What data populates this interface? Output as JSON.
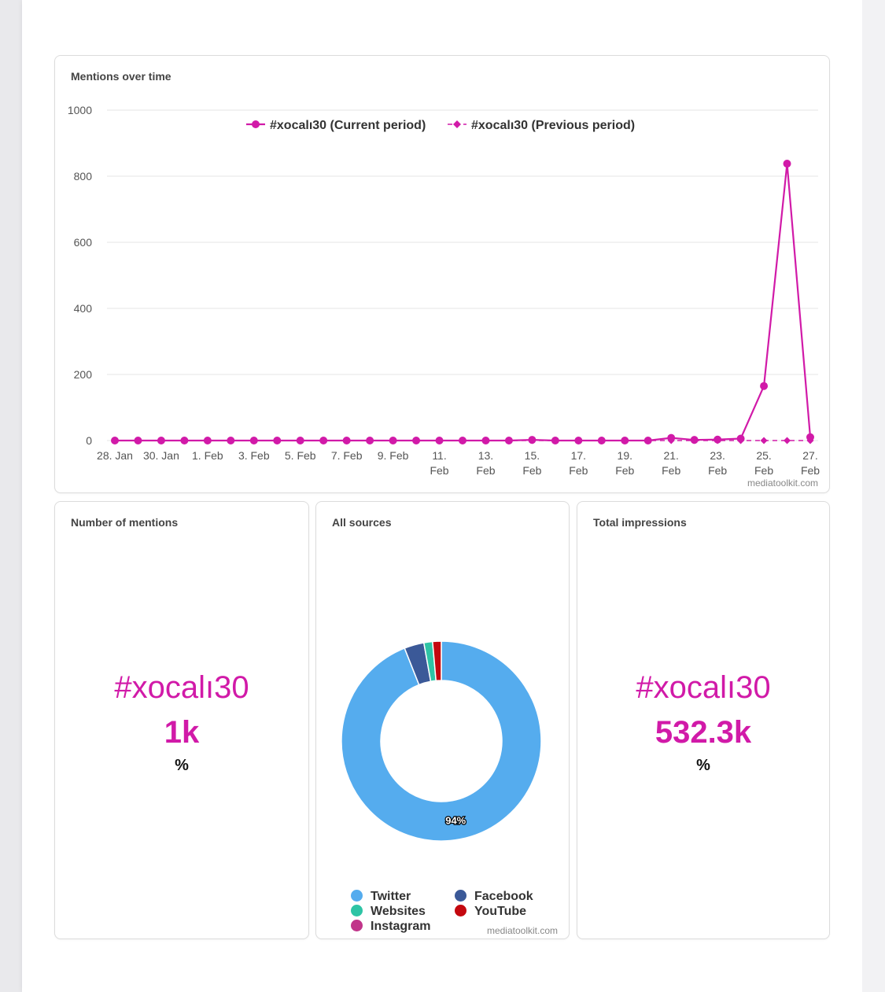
{
  "line_card": {
    "title": "Mentions over time",
    "credit": "mediatoolkit.com"
  },
  "mentions_card": {
    "title": "Number of mentions",
    "tag": "#xocalı30",
    "value": "1k",
    "pct": "%"
  },
  "sources_card": {
    "title": "All sources",
    "credit": "mediatoolkit.com",
    "center_label": "94%"
  },
  "impressions_card": {
    "title": "Total impressions",
    "tag": "#xocalı30",
    "value": "532.3k",
    "pct": "%"
  },
  "colors": {
    "accent": "#d11aa8",
    "twitter": "#55acee",
    "facebook": "#3b5998",
    "websites": "#2ec4a5",
    "youtube": "#c4080f",
    "instagram": "#c1358a"
  },
  "chart_data": [
    {
      "type": "line",
      "title": "Mentions over time",
      "ylim": [
        0,
        1000
      ],
      "yticks": [
        "0",
        "200",
        "400",
        "600",
        "800",
        "1000"
      ],
      "xtick_labels": [
        [
          "28. Jan"
        ],
        [
          "30. Jan"
        ],
        [
          "1. Feb"
        ],
        [
          "3. Feb"
        ],
        [
          "5. Feb"
        ],
        [
          "7. Feb"
        ],
        [
          "9. Feb"
        ],
        [
          "11.",
          "Feb"
        ],
        [
          "13.",
          "Feb"
        ],
        [
          "15.",
          "Feb"
        ],
        [
          "17.",
          "Feb"
        ],
        [
          "19.",
          "Feb"
        ],
        [
          "21.",
          "Feb"
        ],
        [
          "23.",
          "Feb"
        ],
        [
          "25.",
          "Feb"
        ],
        [
          "27.",
          "Feb"
        ]
      ],
      "x": [
        "28. Jan",
        "29. Jan",
        "30. Jan",
        "31. Jan",
        "1. Feb",
        "2. Feb",
        "3. Feb",
        "4. Feb",
        "5. Feb",
        "6. Feb",
        "7. Feb",
        "8. Feb",
        "9. Feb",
        "10. Feb",
        "11. Feb",
        "12. Feb",
        "13. Feb",
        "14. Feb",
        "15. Feb",
        "16. Feb",
        "17. Feb",
        "18. Feb",
        "19. Feb",
        "20. Feb",
        "21. Feb",
        "22. Feb",
        "23. Feb",
        "24. Feb",
        "25. Feb",
        "26. Feb",
        "27. Feb"
      ],
      "series": [
        {
          "name": "#xocalı30 (Current period)",
          "color": "#d11aa8",
          "marker": "circle",
          "dash": "solid",
          "values": [
            0,
            0,
            0,
            0,
            0,
            0,
            0,
            0,
            0,
            0,
            0,
            0,
            0,
            0,
            0,
            0,
            0,
            0,
            2,
            0,
            0,
            0,
            0,
            0,
            8,
            2,
            3,
            6,
            165,
            838,
            10
          ]
        },
        {
          "name": "#xocalı30 (Previous period)",
          "color": "#d11aa8",
          "marker": "diamond",
          "dash": "dashed",
          "values": [
            0,
            0,
            0,
            0,
            0,
            0,
            0,
            0,
            0,
            0,
            0,
            0,
            0,
            0,
            0,
            0,
            0,
            0,
            0,
            0,
            0,
            0,
            0,
            0,
            0,
            0,
            0,
            0,
            0,
            0,
            0
          ]
        }
      ],
      "legend_position": "top-center",
      "grid": true
    },
    {
      "type": "pie",
      "title": "All sources",
      "donut": true,
      "labels": [
        "Twitter",
        "Facebook",
        "Websites",
        "YouTube",
        "Instagram"
      ],
      "values": [
        94,
        3.2,
        1.4,
        1.4,
        0
      ],
      "data_labels": [
        "94%"
      ],
      "legend_position": "bottom"
    }
  ]
}
